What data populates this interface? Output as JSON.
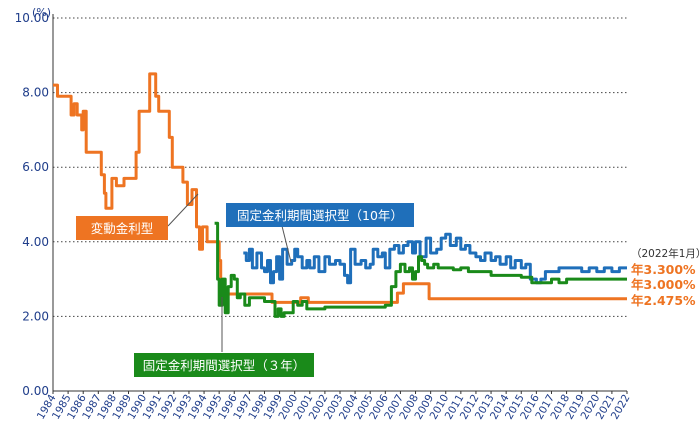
{
  "chart_data": {
    "type": "line",
    "y_unit": "(%)",
    "ylim": [
      0,
      10
    ],
    "y_ticks": [
      "0.00",
      "2.00",
      "4.00",
      "6.00",
      "8.00",
      "10.00"
    ],
    "x_tick_labels": [
      "1984",
      "1985",
      "1986",
      "1987",
      "1988",
      "1989",
      "1990",
      "1991",
      "1992",
      "1993",
      "1994",
      "1995",
      "1996",
      "1997",
      "1998",
      "1999",
      "2000",
      "2001",
      "2002",
      "2003",
      "2004",
      "2005",
      "2006",
      "2007",
      "2008",
      "2009",
      "2010",
      "2011",
      "2012",
      "2013",
      "2014",
      "2015",
      "2016",
      "2017",
      "2018",
      "2019",
      "2020",
      "2021",
      "2022"
    ],
    "xlim": [
      1984,
      2022
    ],
    "grid": "horizontal-dotted",
    "note": "（2022年1月）",
    "series": [
      {
        "name": "変動金利型",
        "color": "#ee7422",
        "end_label": "年2.475%",
        "points": [
          [
            1984.0,
            8.2
          ],
          [
            1984.3,
            7.9
          ],
          [
            1984.9,
            7.9
          ],
          [
            1985.2,
            7.4
          ],
          [
            1985.4,
            7.7
          ],
          [
            1985.6,
            7.4
          ],
          [
            1985.9,
            7.0
          ],
          [
            1986.0,
            7.5
          ],
          [
            1986.2,
            6.4
          ],
          [
            1987.0,
            6.4
          ],
          [
            1987.2,
            5.8
          ],
          [
            1987.4,
            5.3
          ],
          [
            1987.5,
            4.9
          ],
          [
            1987.9,
            5.7
          ],
          [
            1988.2,
            5.5
          ],
          [
            1988.7,
            5.7
          ],
          [
            1989.3,
            5.7
          ],
          [
            1989.5,
            6.4
          ],
          [
            1989.7,
            7.5
          ],
          [
            1990.2,
            7.5
          ],
          [
            1990.4,
            8.5
          ],
          [
            1990.7,
            8.5
          ],
          [
            1990.8,
            7.9
          ],
          [
            1991.0,
            7.5
          ],
          [
            1991.5,
            7.5
          ],
          [
            1991.7,
            6.8
          ],
          [
            1991.9,
            6.0
          ],
          [
            1992.3,
            6.0
          ],
          [
            1992.6,
            5.6
          ],
          [
            1992.9,
            5.0
          ],
          [
            1993.2,
            5.4
          ],
          [
            1993.5,
            4.4
          ],
          [
            1993.7,
            3.8
          ],
          [
            1993.9,
            4.4
          ],
          [
            1994.2,
            4.0
          ],
          [
            1994.7,
            4.0
          ],
          [
            1995.0,
            3.5
          ],
          [
            1995.1,
            2.9
          ],
          [
            1995.3,
            2.6
          ],
          [
            1996.0,
            2.6
          ],
          [
            1997.0,
            2.6
          ],
          [
            1998.0,
            2.6
          ],
          [
            1998.5,
            2.375
          ],
          [
            2000.0,
            2.375
          ],
          [
            2000.4,
            2.5
          ],
          [
            2000.9,
            2.375
          ],
          [
            2005.0,
            2.375
          ],
          [
            2006.6,
            2.375
          ],
          [
            2006.8,
            2.625
          ],
          [
            2007.2,
            2.875
          ],
          [
            2008.7,
            2.875
          ],
          [
            2008.9,
            2.475
          ],
          [
            2022.0,
            2.475
          ]
        ]
      },
      {
        "name": "固定金利期間選択型（10年）",
        "color": "#1f6fba",
        "end_label": "年3.300%",
        "points": [
          [
            1996.6,
            3.7
          ],
          [
            1996.8,
            3.5
          ],
          [
            1997.0,
            3.8
          ],
          [
            1997.2,
            3.3
          ],
          [
            1997.5,
            3.7
          ],
          [
            1997.8,
            3.3
          ],
          [
            1998.0,
            3.2
          ],
          [
            1998.2,
            3.5
          ],
          [
            1998.4,
            2.9
          ],
          [
            1998.6,
            3.2
          ],
          [
            1998.8,
            3.6
          ],
          [
            1999.0,
            3.0
          ],
          [
            1999.2,
            3.8
          ],
          [
            1999.5,
            3.4
          ],
          [
            1999.8,
            3.5
          ],
          [
            2000.0,
            3.8
          ],
          [
            2000.2,
            3.6
          ],
          [
            2000.5,
            3.3
          ],
          [
            2000.8,
            3.5
          ],
          [
            2001.0,
            3.3
          ],
          [
            2001.3,
            3.6
          ],
          [
            2001.6,
            3.2
          ],
          [
            2002.0,
            3.6
          ],
          [
            2002.3,
            3.4
          ],
          [
            2002.7,
            3.5
          ],
          [
            2003.0,
            3.4
          ],
          [
            2003.3,
            3.1
          ],
          [
            2003.5,
            2.9
          ],
          [
            2003.7,
            3.8
          ],
          [
            2004.0,
            3.4
          ],
          [
            2004.4,
            3.5
          ],
          [
            2004.7,
            3.3
          ],
          [
            2005.0,
            3.4
          ],
          [
            2005.2,
            3.8
          ],
          [
            2005.5,
            3.6
          ],
          [
            2005.8,
            3.7
          ],
          [
            2006.0,
            3.3
          ],
          [
            2006.3,
            3.8
          ],
          [
            2006.6,
            3.9
          ],
          [
            2006.9,
            3.7
          ],
          [
            2007.2,
            3.9
          ],
          [
            2007.5,
            4.0
          ],
          [
            2007.8,
            3.7
          ],
          [
            2008.0,
            4.0
          ],
          [
            2008.3,
            3.6
          ],
          [
            2008.7,
            4.1
          ],
          [
            2009.0,
            3.7
          ],
          [
            2009.4,
            3.8
          ],
          [
            2009.7,
            4.1
          ],
          [
            2010.0,
            4.2
          ],
          [
            2010.3,
            3.9
          ],
          [
            2010.7,
            4.1
          ],
          [
            2011.0,
            3.8
          ],
          [
            2011.3,
            3.9
          ],
          [
            2011.6,
            3.7
          ],
          [
            2012.0,
            3.6
          ],
          [
            2012.3,
            3.5
          ],
          [
            2012.6,
            3.7
          ],
          [
            2013.0,
            3.5
          ],
          [
            2013.3,
            3.6
          ],
          [
            2013.6,
            3.4
          ],
          [
            2014.0,
            3.6
          ],
          [
            2014.3,
            3.3
          ],
          [
            2014.6,
            3.5
          ],
          [
            2015.0,
            3.3
          ],
          [
            2015.3,
            3.4
          ],
          [
            2015.6,
            3.0
          ],
          [
            2016.0,
            2.9
          ],
          [
            2016.3,
            3.0
          ],
          [
            2016.6,
            3.2
          ],
          [
            2017.0,
            3.2
          ],
          [
            2017.5,
            3.3
          ],
          [
            2018.0,
            3.3
          ],
          [
            2018.5,
            3.3
          ],
          [
            2019.0,
            3.2
          ],
          [
            2019.5,
            3.3
          ],
          [
            2020.0,
            3.2
          ],
          [
            2020.5,
            3.3
          ],
          [
            2021.0,
            3.2
          ],
          [
            2021.5,
            3.3
          ],
          [
            2022.0,
            3.3
          ]
        ]
      },
      {
        "name": "固定金利期間選択型（３年）",
        "color": "#1a8a1a",
        "end_label": "年3.000%",
        "points": [
          [
            1994.7,
            4.5
          ],
          [
            1994.9,
            3.0
          ],
          [
            1995.0,
            2.3
          ],
          [
            1995.2,
            3.0
          ],
          [
            1995.4,
            2.1
          ],
          [
            1995.6,
            2.8
          ],
          [
            1995.8,
            3.1
          ],
          [
            1996.0,
            3.0
          ],
          [
            1996.2,
            2.5
          ],
          [
            1996.4,
            2.6
          ],
          [
            1996.7,
            2.3
          ],
          [
            1997.0,
            2.5
          ],
          [
            1997.5,
            2.5
          ],
          [
            1998.0,
            2.4
          ],
          [
            1998.5,
            2.4
          ],
          [
            1998.7,
            2.0
          ],
          [
            1998.9,
            2.2
          ],
          [
            1999.1,
            2.0
          ],
          [
            1999.3,
            2.1
          ],
          [
            1999.6,
            2.1
          ],
          [
            1999.9,
            2.4
          ],
          [
            2000.2,
            2.3
          ],
          [
            2000.5,
            2.4
          ],
          [
            2000.8,
            2.2
          ],
          [
            2001.0,
            2.2
          ],
          [
            2002.0,
            2.25
          ],
          [
            2004.0,
            2.25
          ],
          [
            2005.5,
            2.25
          ],
          [
            2006.0,
            2.3
          ],
          [
            2006.4,
            2.8
          ],
          [
            2006.7,
            3.2
          ],
          [
            2007.0,
            3.4
          ],
          [
            2007.3,
            3.2
          ],
          [
            2007.6,
            3.3
          ],
          [
            2007.8,
            3.0
          ],
          [
            2008.0,
            3.2
          ],
          [
            2008.2,
            3.6
          ],
          [
            2008.4,
            3.5
          ],
          [
            2008.6,
            3.4
          ],
          [
            2008.8,
            3.3
          ],
          [
            2009.2,
            3.4
          ],
          [
            2009.5,
            3.3
          ],
          [
            2010.0,
            3.3
          ],
          [
            2010.5,
            3.25
          ],
          [
            2011.0,
            3.3
          ],
          [
            2011.5,
            3.2
          ],
          [
            2012.0,
            3.2
          ],
          [
            2013.0,
            3.1
          ],
          [
            2014.0,
            3.1
          ],
          [
            2015.0,
            3.05
          ],
          [
            2015.5,
            3.05
          ],
          [
            2015.7,
            2.9
          ],
          [
            2016.5,
            2.9
          ],
          [
            2017.0,
            3.0
          ],
          [
            2017.5,
            2.9
          ],
          [
            2018.0,
            3.0
          ],
          [
            2019.0,
            3.0
          ],
          [
            2020.0,
            3.0
          ],
          [
            2021.0,
            3.0
          ],
          [
            2022.0,
            3.0
          ]
        ]
      }
    ]
  }
}
